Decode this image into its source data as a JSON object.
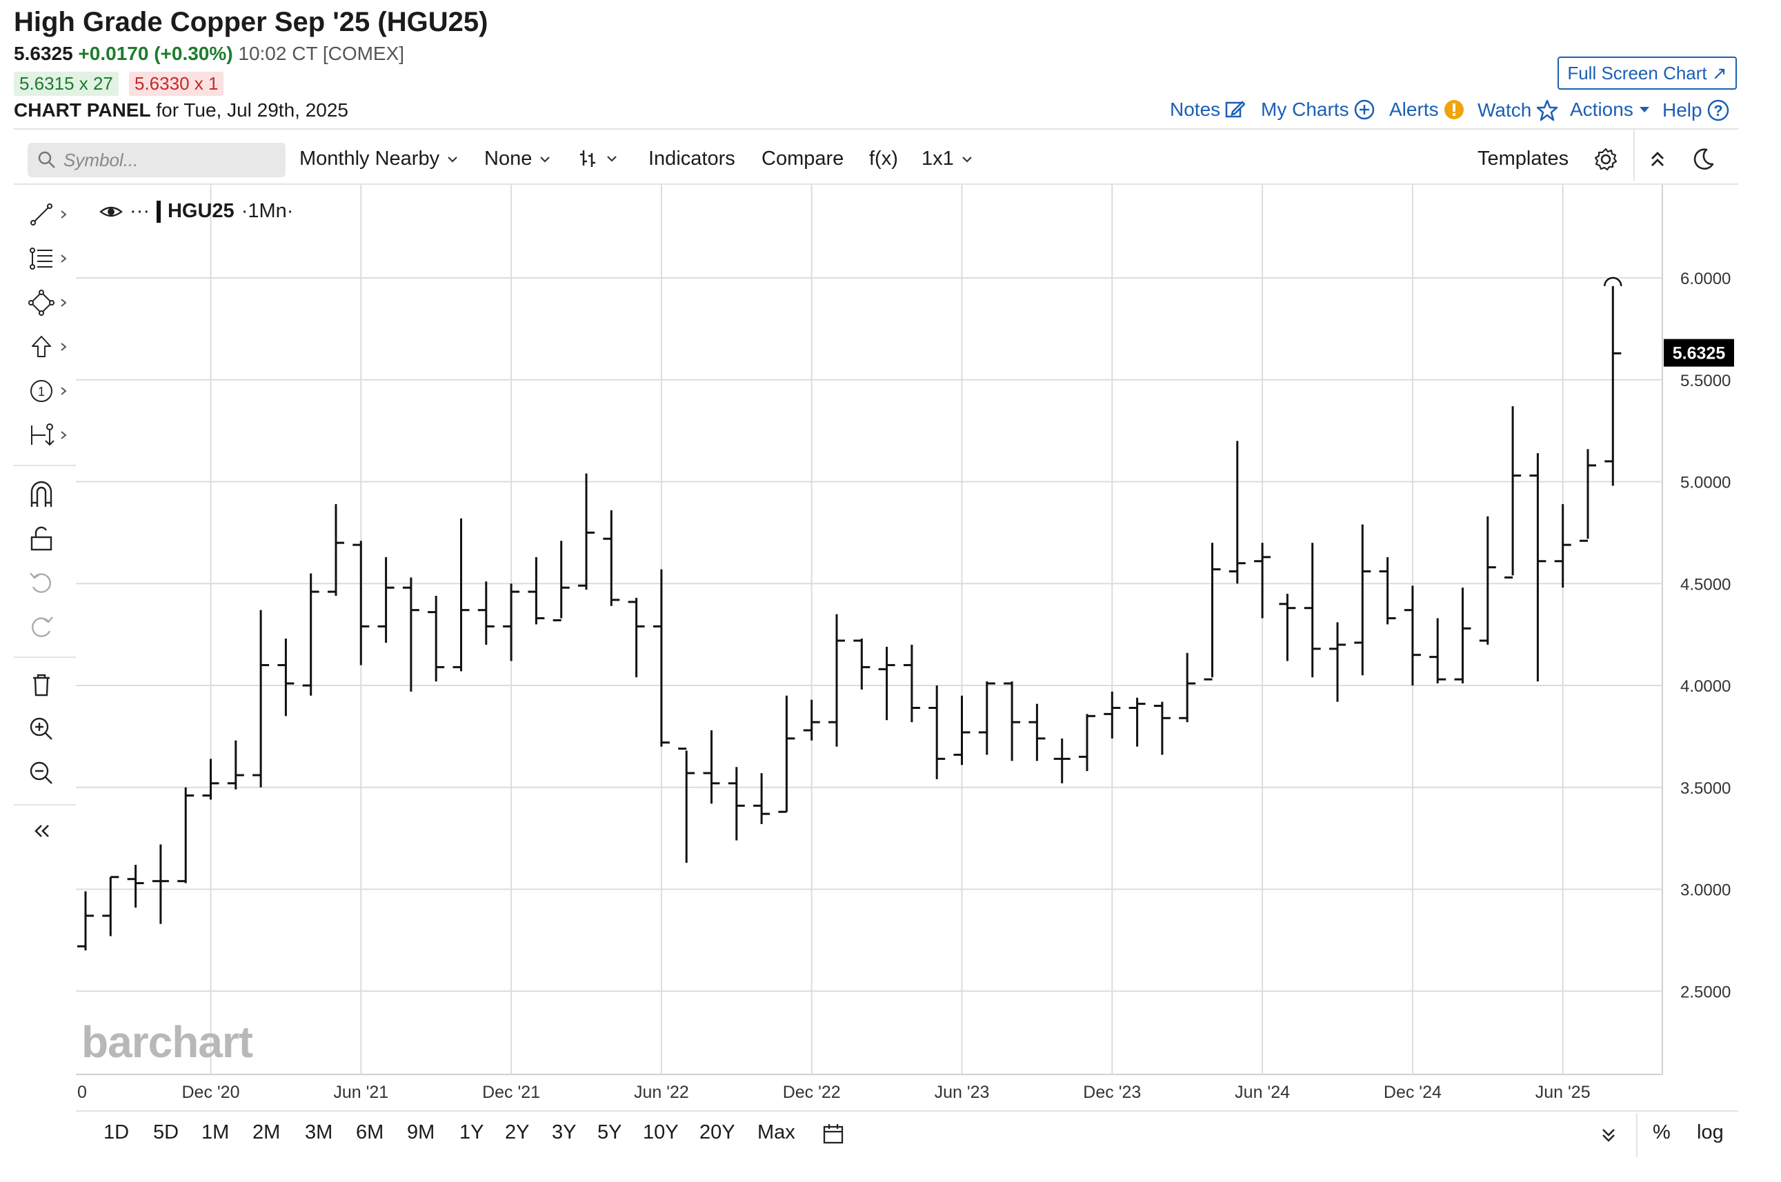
{
  "header": {
    "title": "High Grade Copper Sep '25 (HGU25)",
    "last": "5.6325",
    "change": "+0.0170 (+0.30%)",
    "time": "10:02 CT [COMEX]",
    "bid": "5.6315 x 27",
    "ask": "5.6330 x 1",
    "panel_label": "CHART PANEL",
    "panel_date": "for Tue, Jul 29th, 2025",
    "full_screen": "Full Screen Chart ↗"
  },
  "topnav": {
    "notes": "Notes",
    "my_charts": "My Charts",
    "alerts": "Alerts",
    "watch": "Watch",
    "actions": "Actions",
    "help": "Help"
  },
  "toolbar": {
    "search_placeholder": "Symbol...",
    "period": "Monthly Nearby",
    "overlay": "None",
    "indicators": "Indicators",
    "compare": "Compare",
    "fx": "f(x)",
    "layout": "1x1",
    "templates": "Templates"
  },
  "legend": {
    "symbol": "HGU25",
    "interval": "·1Mn·",
    "ellipsis": "···"
  },
  "watermark": "barchart",
  "ranges": [
    "1D",
    "5D",
    "1M",
    "2M",
    "3M",
    "6M",
    "9M",
    "1Y",
    "2Y",
    "3Y",
    "5Y",
    "10Y",
    "20Y",
    "Max"
  ],
  "bottom_right": {
    "percent": "%",
    "log": "log"
  },
  "icons": [
    "search-icon",
    "chevron-down-icon",
    "bar-type-icon",
    "line-tool-icon",
    "fib-tool-icon",
    "shape-tool-icon",
    "arrow-tool-icon",
    "number-tool-icon",
    "measure-tool-icon",
    "magnet-icon",
    "lock-icon",
    "undo-icon",
    "redo-icon",
    "trash-icon",
    "zoom-in-icon",
    "zoom-out-icon",
    "collapse-icon",
    "gear-icon",
    "caret-up-icon",
    "moon-icon",
    "eye-icon",
    "calendar-icon",
    "double-chevron-down-icon",
    "pencil-icon",
    "plus-circle-icon",
    "exclamation-icon",
    "star-icon",
    "question-icon"
  ],
  "colors": {
    "up": "#1e7b2e",
    "down": "#c62828",
    "link": "#1a5fb4",
    "price_tag": "#000000"
  },
  "chart_data": {
    "type": "ohlc",
    "interval": "monthly",
    "last_price_label": "5.6325",
    "ylim": [
      2.1,
      6.4
    ],
    "y_ticks": [
      "2.5000",
      "3.0000",
      "3.5000",
      "4.0000",
      "4.5000",
      "5.0000",
      "5.5000",
      "6.0000"
    ],
    "x_ticks": [
      {
        "label": "0",
        "month": "2020-07"
      },
      {
        "label": "Dec '20",
        "month": "2020-12"
      },
      {
        "label": "Jun '21",
        "month": "2021-06"
      },
      {
        "label": "Dec '21",
        "month": "2021-12"
      },
      {
        "label": "Jun '22",
        "month": "2022-06"
      },
      {
        "label": "Dec '22",
        "month": "2022-12"
      },
      {
        "label": "Jun '23",
        "month": "2023-06"
      },
      {
        "label": "Dec '23",
        "month": "2023-12"
      },
      {
        "label": "Jun '24",
        "month": "2024-06"
      },
      {
        "label": "Dec '24",
        "month": "2024-12"
      },
      {
        "label": "Jun '25",
        "month": "2025-06"
      }
    ],
    "grid": true,
    "bars": [
      {
        "d": "2020-07",
        "o": 2.72,
        "h": 2.99,
        "l": 2.7,
        "c": 2.87
      },
      {
        "d": "2020-08",
        "o": 2.87,
        "h": 3.06,
        "l": 2.77,
        "c": 3.06
      },
      {
        "d": "2020-09",
        "o": 3.05,
        "h": 3.12,
        "l": 2.91,
        "c": 3.03
      },
      {
        "d": "2020-10",
        "o": 3.04,
        "h": 3.22,
        "l": 2.83,
        "c": 3.04
      },
      {
        "d": "2020-11",
        "o": 3.04,
        "h": 3.5,
        "l": 3.03,
        "c": 3.46
      },
      {
        "d": "2020-12",
        "o": 3.46,
        "h": 3.64,
        "l": 3.44,
        "c": 3.52
      },
      {
        "d": "2021-01",
        "o": 3.52,
        "h": 3.73,
        "l": 3.49,
        "c": 3.56
      },
      {
        "d": "2021-02",
        "o": 3.56,
        "h": 4.37,
        "l": 3.5,
        "c": 4.1
      },
      {
        "d": "2021-03",
        "o": 4.1,
        "h": 4.23,
        "l": 3.85,
        "c": 4.01
      },
      {
        "d": "2021-04",
        "o": 4.0,
        "h": 4.55,
        "l": 3.95,
        "c": 4.46
      },
      {
        "d": "2021-05",
        "o": 4.46,
        "h": 4.89,
        "l": 4.44,
        "c": 4.7
      },
      {
        "d": "2021-06",
        "o": 4.69,
        "h": 4.71,
        "l": 4.1,
        "c": 4.29
      },
      {
        "d": "2021-07",
        "o": 4.29,
        "h": 4.63,
        "l": 4.21,
        "c": 4.48
      },
      {
        "d": "2021-08",
        "o": 4.48,
        "h": 4.53,
        "l": 3.97,
        "c": 4.37
      },
      {
        "d": "2021-09",
        "o": 4.36,
        "h": 4.44,
        "l": 4.02,
        "c": 4.09
      },
      {
        "d": "2021-10",
        "o": 4.09,
        "h": 4.82,
        "l": 4.07,
        "c": 4.37
      },
      {
        "d": "2021-11",
        "o": 4.37,
        "h": 4.51,
        "l": 4.2,
        "c": 4.29
      },
      {
        "d": "2021-12",
        "o": 4.29,
        "h": 4.5,
        "l": 4.12,
        "c": 4.46
      },
      {
        "d": "2022-01",
        "o": 4.46,
        "h": 4.63,
        "l": 4.3,
        "c": 4.33
      },
      {
        "d": "2022-02",
        "o": 4.32,
        "h": 4.71,
        "l": 4.33,
        "c": 4.48
      },
      {
        "d": "2022-03",
        "o": 4.49,
        "h": 5.04,
        "l": 4.47,
        "c": 4.75
      },
      {
        "d": "2022-04",
        "o": 4.72,
        "h": 4.86,
        "l": 4.39,
        "c": 4.42
      },
      {
        "d": "2022-05",
        "o": 4.41,
        "h": 4.43,
        "l": 4.04,
        "c": 4.29
      },
      {
        "d": "2022-06",
        "o": 4.29,
        "h": 4.57,
        "l": 3.7,
        "c": 3.72
      },
      {
        "d": "2022-07",
        "o": 3.69,
        "h": 3.68,
        "l": 3.13,
        "c": 3.57
      },
      {
        "d": "2022-08",
        "o": 3.57,
        "h": 3.78,
        "l": 3.42,
        "c": 3.52
      },
      {
        "d": "2022-09",
        "o": 3.52,
        "h": 3.6,
        "l": 3.24,
        "c": 3.41
      },
      {
        "d": "2022-10",
        "o": 3.41,
        "h": 3.57,
        "l": 3.32,
        "c": 3.37
      },
      {
        "d": "2022-11",
        "o": 3.38,
        "h": 3.95,
        "l": 3.38,
        "c": 3.74
      },
      {
        "d": "2022-12",
        "o": 3.78,
        "h": 3.93,
        "l": 3.73,
        "c": 3.82
      },
      {
        "d": "2023-01",
        "o": 3.82,
        "h": 4.35,
        "l": 3.7,
        "c": 4.22
      },
      {
        "d": "2023-02",
        "o": 4.22,
        "h": 4.23,
        "l": 3.98,
        "c": 4.09
      },
      {
        "d": "2023-03",
        "o": 4.08,
        "h": 4.19,
        "l": 3.83,
        "c": 4.1
      },
      {
        "d": "2023-04",
        "o": 4.1,
        "h": 4.2,
        "l": 3.82,
        "c": 3.89
      },
      {
        "d": "2023-05",
        "o": 3.89,
        "h": 4.0,
        "l": 3.54,
        "c": 3.64
      },
      {
        "d": "2023-06",
        "o": 3.66,
        "h": 3.95,
        "l": 3.61,
        "c": 3.77
      },
      {
        "d": "2023-07",
        "o": 3.77,
        "h": 4.02,
        "l": 3.66,
        "c": 4.01
      },
      {
        "d": "2023-08",
        "o": 4.01,
        "h": 4.02,
        "l": 3.63,
        "c": 3.82
      },
      {
        "d": "2023-09",
        "o": 3.82,
        "h": 3.91,
        "l": 3.63,
        "c": 3.74
      },
      {
        "d": "2023-10",
        "o": 3.64,
        "h": 3.74,
        "l": 3.52,
        "c": 3.64
      },
      {
        "d": "2023-11",
        "o": 3.65,
        "h": 3.86,
        "l": 3.58,
        "c": 3.85
      },
      {
        "d": "2023-12",
        "o": 3.86,
        "h": 3.97,
        "l": 3.74,
        "c": 3.89
      },
      {
        "d": "2024-01",
        "o": 3.89,
        "h": 3.94,
        "l": 3.7,
        "c": 3.91
      },
      {
        "d": "2024-02",
        "o": 3.9,
        "h": 3.92,
        "l": 3.66,
        "c": 3.84
      },
      {
        "d": "2024-03",
        "o": 3.84,
        "h": 4.16,
        "l": 3.82,
        "c": 4.01
      },
      {
        "d": "2024-04",
        "o": 4.03,
        "h": 4.7,
        "l": 4.04,
        "c": 4.57
      },
      {
        "d": "2024-05",
        "o": 4.56,
        "h": 5.2,
        "l": 4.5,
        "c": 4.6
      },
      {
        "d": "2024-06",
        "o": 4.61,
        "h": 4.7,
        "l": 4.33,
        "c": 4.63
      },
      {
        "d": "2024-07",
        "o": 4.4,
        "h": 4.45,
        "l": 4.12,
        "c": 4.38
      },
      {
        "d": "2024-08",
        "o": 4.38,
        "h": 4.7,
        "l": 4.04,
        "c": 4.18
      },
      {
        "d": "2024-09",
        "o": 4.18,
        "h": 4.31,
        "l": 3.92,
        "c": 4.2
      },
      {
        "d": "2024-10",
        "o": 4.21,
        "h": 4.79,
        "l": 4.05,
        "c": 4.56
      },
      {
        "d": "2024-11",
        "o": 4.56,
        "h": 4.63,
        "l": 4.3,
        "c": 4.33
      },
      {
        "d": "2024-12",
        "o": 4.37,
        "h": 4.49,
        "l": 4.0,
        "c": 4.15
      },
      {
        "d": "2025-01",
        "o": 4.14,
        "h": 4.33,
        "l": 4.01,
        "c": 4.03
      },
      {
        "d": "2025-02",
        "o": 4.03,
        "h": 4.48,
        "l": 4.01,
        "c": 4.28
      },
      {
        "d": "2025-03",
        "o": 4.22,
        "h": 4.83,
        "l": 4.2,
        "c": 4.58
      },
      {
        "d": "2025-04",
        "o": 4.53,
        "h": 5.37,
        "l": 4.54,
        "c": 5.03
      },
      {
        "d": "2025-05",
        "o": 5.03,
        "h": 5.14,
        "l": 4.02,
        "c": 4.61
      },
      {
        "d": "2025-06",
        "o": 4.61,
        "h": 4.89,
        "l": 4.48,
        "c": 4.69
      },
      {
        "d": "2025-07",
        "o": 4.71,
        "h": 5.16,
        "l": 4.72,
        "c": 5.08
      },
      {
        "d": "2025-08",
        "o": 5.1,
        "h": 5.96,
        "l": 4.98,
        "c": 5.63
      }
    ]
  }
}
